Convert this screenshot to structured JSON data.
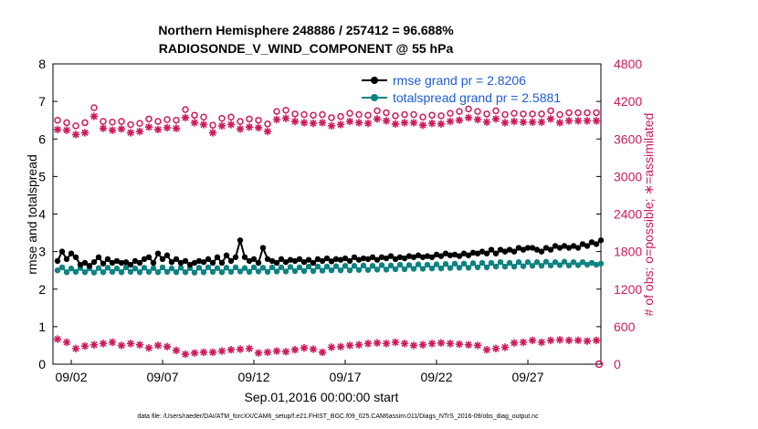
{
  "chart_data": {
    "type": "line",
    "title": "Northern Hemisphere 248886 / 257412 = 96.688%",
    "subtitle": "RADIOSONDE_V_WIND_COMPONENT @ 55 hPa",
    "xlabel": "Sep.01,2016 00:00:00 start",
    "ylabel_left": "rmse and totalspread",
    "ylabel_right": "# of obs: o=possible; ∗=assimilated",
    "xlim": [
      0,
      60
    ],
    "ylim_left": [
      0,
      8
    ],
    "ylim_right": [
      0,
      4800
    ],
    "x_tick_values": [
      2,
      12,
      22,
      32,
      42,
      52
    ],
    "x_tick_labels": [
      "09/02",
      "09/07",
      "09/12",
      "09/17",
      "09/22",
      "09/27"
    ],
    "y_left_ticks": [
      "0",
      "1",
      "2",
      "3",
      "4",
      "5",
      "6",
      "7",
      "8"
    ],
    "y_right_ticks": [
      "0",
      "600",
      "1200",
      "1800",
      "2400",
      "3000",
      "3600",
      "4200",
      "4800"
    ],
    "legend": [
      "rmse grand pr = 2.8206",
      "totalspread grand pr = 2.5881"
    ],
    "legend_location": "top-right",
    "footnote": "data file: /Users/raeder/DAI/ATM_forcXX/CAM6_setup/f.e21.FHIST_BGC.f09_025.CAM6assim.011/Diags_NTrS_2016-09/obs_diag_output.nc",
    "colors": {
      "rmse": "#000000",
      "spread": "#0f8282",
      "obs": "#cc1a5c",
      "legend_text": "#1f5bd8",
      "axis": "#000000"
    },
    "series": [
      {
        "name": "rmse",
        "axis": "left",
        "values": [
          2.75,
          3.0,
          2.8,
          2.95,
          2.85,
          2.65,
          2.7,
          2.62,
          2.72,
          2.85,
          2.68,
          2.8,
          2.7,
          2.75,
          2.7,
          2.72,
          2.65,
          2.75,
          2.7,
          2.8,
          2.85,
          2.7,
          2.95,
          2.8,
          2.9,
          2.72,
          2.8,
          2.7,
          2.75,
          2.65,
          2.7,
          2.75,
          2.72,
          2.8,
          2.7,
          2.85,
          2.7,
          2.9,
          2.75,
          2.85,
          3.3,
          2.85,
          2.75,
          2.8,
          2.7,
          3.1,
          2.8,
          2.75,
          2.7,
          2.8,
          2.72,
          2.78,
          2.75,
          2.8,
          2.72,
          2.78,
          2.7,
          2.8,
          2.75,
          2.82,
          2.74,
          2.8,
          2.78,
          2.82,
          2.75,
          2.85,
          2.78,
          2.82,
          2.8,
          2.85,
          2.78,
          2.85,
          2.82,
          2.88,
          2.8,
          2.85,
          2.82,
          2.88,
          2.85,
          2.9,
          2.85,
          2.88,
          2.85,
          2.92,
          2.88,
          2.95,
          2.9,
          2.92,
          2.88,
          2.95,
          2.9,
          2.97,
          2.95,
          3.0,
          2.95,
          3.05,
          2.95,
          3.05,
          3.0,
          3.05,
          3.0,
          3.1,
          3.05,
          3.1,
          3.1,
          3.05,
          3.0,
          3.1,
          3.05,
          3.15,
          3.1,
          3.15,
          3.1,
          3.15,
          3.1,
          3.2,
          3.15,
          3.25,
          3.2,
          3.3
        ]
      },
      {
        "name": "totalspread",
        "axis": "left",
        "values": [
          2.5,
          2.58,
          2.45,
          2.55,
          2.46,
          2.56,
          2.45,
          2.55,
          2.44,
          2.56,
          2.45,
          2.57,
          2.46,
          2.55,
          2.45,
          2.58,
          2.46,
          2.55,
          2.45,
          2.57,
          2.46,
          2.56,
          2.45,
          2.58,
          2.46,
          2.55,
          2.45,
          2.57,
          2.45,
          2.56,
          2.44,
          2.57,
          2.45,
          2.58,
          2.46,
          2.56,
          2.45,
          2.57,
          2.46,
          2.58,
          2.47,
          2.56,
          2.46,
          2.58,
          2.47,
          2.57,
          2.46,
          2.58,
          2.47,
          2.58,
          2.47,
          2.59,
          2.48,
          2.58,
          2.48,
          2.6,
          2.48,
          2.6,
          2.49,
          2.6,
          2.5,
          2.61,
          2.5,
          2.62,
          2.5,
          2.62,
          2.51,
          2.63,
          2.51,
          2.62,
          2.52,
          2.64,
          2.52,
          2.63,
          2.53,
          2.65,
          2.53,
          2.64,
          2.54,
          2.66,
          2.54,
          2.65,
          2.55,
          2.66,
          2.55,
          2.67,
          2.56,
          2.68,
          2.57,
          2.68,
          2.57,
          2.69,
          2.58,
          2.7,
          2.58,
          2.7,
          2.6,
          2.72,
          2.6,
          2.7,
          2.6,
          2.72,
          2.61,
          2.72,
          2.62,
          2.72,
          2.62,
          2.73,
          2.63,
          2.72,
          2.64,
          2.73,
          2.63,
          2.72,
          2.64,
          2.72,
          2.65,
          2.7,
          2.65,
          2.68
        ]
      },
      {
        "name": "obs_possible",
        "axis": "right",
        "values": [
          3900,
          3930,
          3860,
          3950,
          3810,
          3940,
          3860,
          3990,
          4100,
          3970,
          3880,
          3960,
          3870,
          3980,
          3880,
          3950,
          3830,
          3910,
          3850,
          3900,
          3920,
          3860,
          3880,
          3830,
          3910,
          3850,
          3900,
          3980,
          4070,
          4110,
          3980,
          3900,
          3950,
          3910,
          3820,
          3920,
          3930,
          3880,
          3950,
          3900,
          3880,
          3940,
          3920,
          3850,
          3900,
          3960,
          3840,
          3910,
          4040,
          4080,
          4060,
          3960,
          4000,
          4020,
          3990,
          4050,
          3980,
          4010,
          3990,
          4030,
          3940,
          3990,
          3960,
          3980,
          4010,
          3960,
          3990,
          4030,
          3980,
          4010,
          4050,
          4000,
          4020,
          3990,
          3970,
          3950,
          3990,
          3960,
          3990,
          3970,
          3950,
          3990,
          3980,
          4000,
          3970,
          3990,
          4010,
          3980,
          4040,
          4060,
          4080,
          4020,
          4040,
          4080,
          4000,
          4030,
          4050,
          3980,
          3990,
          4020,
          4010,
          3960,
          4000,
          3990,
          4000,
          4020,
          4000,
          4030,
          4050,
          4020,
          3990,
          4030,
          4020,
          4000,
          4020,
          4040,
          4020,
          4010,
          4020,
          4030
        ]
      },
      {
        "name": "obs_assimilated",
        "axis": "right",
        "values": [
          3750,
          3800,
          3740,
          3820,
          3670,
          3780,
          3700,
          3850,
          3960,
          3850,
          3770,
          3840,
          3740,
          3860,
          3760,
          3830,
          3700,
          3790,
          3720,
          3770,
          3790,
          3730,
          3750,
          3700,
          3780,
          3720,
          3770,
          3860,
          3940,
          3980,
          3860,
          3780,
          3830,
          3790,
          3700,
          3790,
          3810,
          3760,
          3830,
          3780,
          3760,
          3820,
          3790,
          3730,
          3780,
          3840,
          3720,
          3790,
          3910,
          3950,
          3930,
          3840,
          3880,
          3900,
          3860,
          3920,
          3850,
          3880,
          3860,
          3900,
          3810,
          3860,
          3830,
          3850,
          3880,
          3830,
          3860,
          3900,
          3850,
          3880,
          3920,
          3870,
          3890,
          3860,
          3840,
          3820,
          3860,
          3830,
          3860,
          3840,
          3820,
          3860,
          3850,
          3870,
          3840,
          3860,
          3880,
          3850,
          3900,
          3920,
          3940,
          3890,
          3910,
          3950,
          3870,
          3900,
          3920,
          3850,
          3860,
          3890,
          3880,
          3830,
          3870,
          3860,
          3870,
          3890,
          3870,
          3900,
          3920,
          3890,
          3860,
          3900,
          3890,
          3870,
          3890,
          3910,
          3890,
          3880,
          3890,
          3900
        ]
      },
      {
        "name": "obs_low",
        "axis": "right",
        "values": [
          400,
          420,
          350,
          380,
          250,
          180,
          290,
          220,
          310,
          230,
          330,
          210,
          350,
          240,
          300,
          270,
          330,
          220,
          310,
          280,
          260,
          230,
          300,
          240,
          280,
          250,
          220,
          190,
          160,
          210,
          180,
          220,
          190,
          250,
          190,
          240,
          210,
          260,
          230,
          270,
          240,
          210,
          250,
          200,
          180,
          220,
          190,
          250,
          210,
          240,
          200,
          180,
          230,
          200,
          260,
          190,
          240,
          210,
          190,
          230,
          270,
          240,
          280,
          250,
          300,
          270,
          310,
          280,
          330,
          300,
          340,
          310,
          330,
          310,
          350,
          320,
          330,
          310,
          300,
          280,
          310,
          290,
          330,
          300,
          340,
          310,
          330,
          300,
          320,
          290,
          310,
          330,
          300,
          250,
          230,
          200,
          250,
          220,
          270,
          300,
          340,
          380,
          350,
          370,
          380,
          420,
          350,
          390,
          380,
          400,
          390,
          420,
          380,
          400,
          380,
          410,
          370,
          400,
          380,
          280
        ]
      }
    ]
  }
}
